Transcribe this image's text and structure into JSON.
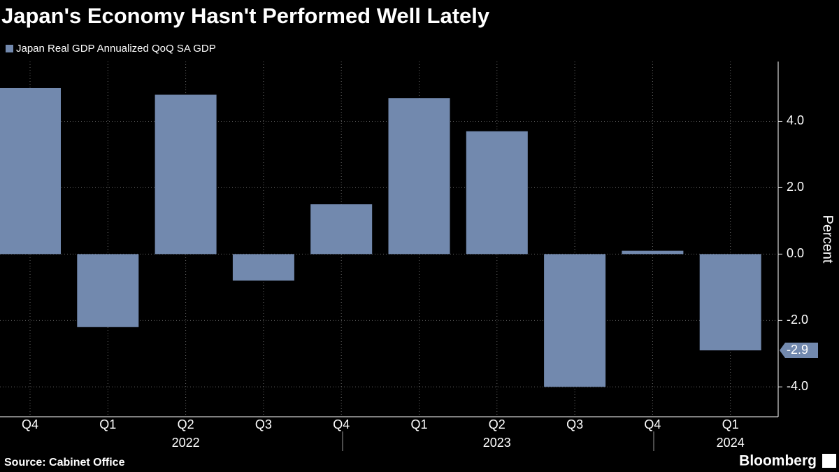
{
  "chart_data": {
    "type": "bar",
    "title": "Japan's Economy Hasn't Performed Well Lately",
    "series": [
      {
        "name": "Japan Real GDP Annualized QoQ SA GDP",
        "color": "#7289ae",
        "values": [
          5.0,
          -2.2,
          4.8,
          -0.8,
          1.5,
          4.7,
          3.7,
          -4.0,
          0.1,
          -2.9
        ]
      }
    ],
    "categories": [
      "Q4",
      "Q1",
      "Q2",
      "Q3",
      "Q4",
      "Q1",
      "Q2",
      "Q3",
      "Q4",
      "Q1"
    ],
    "year_labels": [
      null,
      null,
      "2022",
      null,
      null,
      null,
      "2023",
      null,
      null,
      "2024"
    ],
    "y_axis_label": "Percent",
    "ylim": [
      -4.9,
      5.8
    ],
    "yticks": [
      {
        "value": -4,
        "label": "-4.0"
      },
      {
        "value": -2,
        "label": "-2.0"
      },
      {
        "value": 0,
        "label": "0.0"
      },
      {
        "value": 2,
        "label": "2.0"
      },
      {
        "value": 4,
        "label": "4.0"
      }
    ],
    "grid": true,
    "label_last_value": true,
    "source": "Source: Cabinet Office",
    "brand": "Bloomberg"
  }
}
